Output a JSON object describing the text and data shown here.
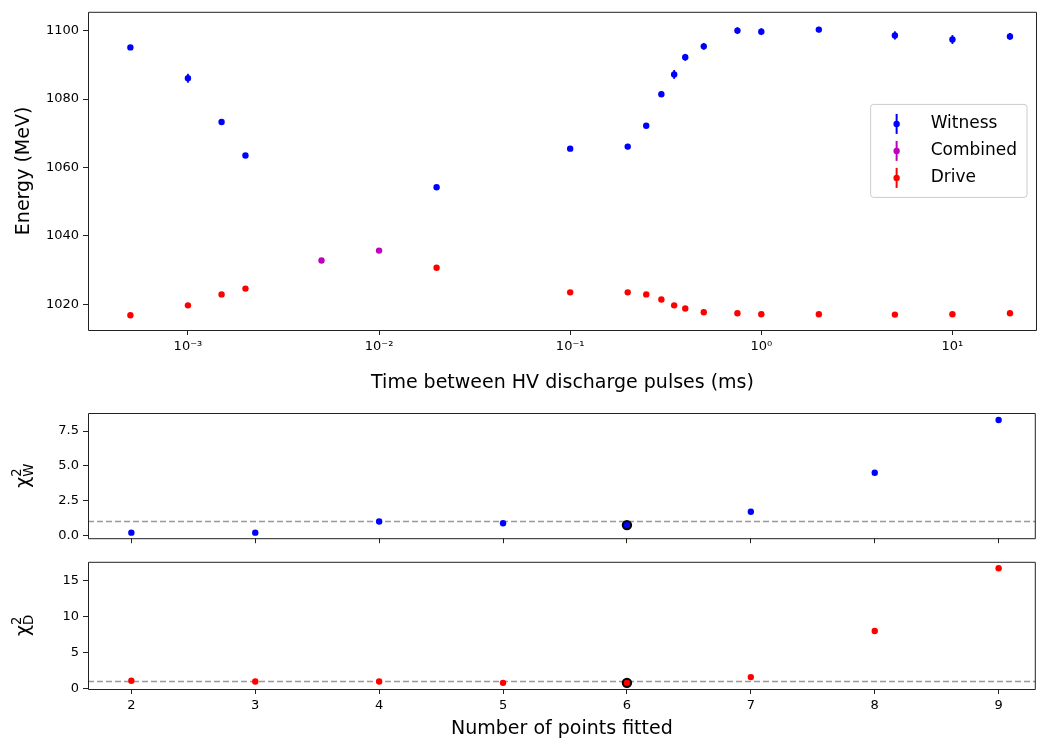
{
  "chart_data": [
    {
      "type": "scatter",
      "xlabel": "Time between HV discharge pulses (ms)",
      "ylabel": "Energy (MeV)",
      "log": "x",
      "xlim": [
        0.0003,
        27.7
      ],
      "ylim": [
        1012.5,
        1105.5
      ],
      "xticks": [
        {
          "value": 0.001,
          "label": "10⁻³"
        },
        {
          "value": 0.01,
          "label": "10⁻²"
        },
        {
          "value": 0.1,
          "label": "10⁻¹"
        },
        {
          "value": 1,
          "label": "10⁰"
        },
        {
          "value": 10,
          "label": "10¹"
        }
      ],
      "yticks": [
        1020,
        1040,
        1060,
        1080,
        1100
      ],
      "legend": "right",
      "marker": "circle",
      "series": [
        {
          "name": "Witness",
          "color": "#0000ff",
          "x": [
            0.0005,
            0.001,
            0.0015,
            0.002,
            0.02,
            0.1,
            0.2,
            0.25,
            0.3,
            0.35,
            0.4,
            0.5,
            0.75,
            1,
            2,
            5,
            10,
            20
          ],
          "values": [
            1095.1,
            1086.1,
            1073.3,
            1063.5,
            1054.2,
            1065.5,
            1066.1,
            1072.2,
            1081.4,
            1087.2,
            1092.2,
            1095.4,
            1100,
            1099.7,
            1100.3,
            1098.6,
            1097.4,
            1098.3
          ],
          "errors": [
            0.5,
            1.3,
            0.5,
            0.5,
            0.5,
            0.5,
            0.8,
            0.6,
            0.8,
            1.3,
            1,
            1,
            1,
            1,
            0.8,
            1.2,
            1.3,
            1
          ]
        },
        {
          "name": "Combined",
          "color": "#bf00bf",
          "x": [
            0.005,
            0.01
          ],
          "values": [
            1032.8,
            1035.7
          ]
        },
        {
          "name": "Drive",
          "color": "#ff0000",
          "x": [
            0.0005,
            0.001,
            0.0015,
            0.002,
            0.02,
            0.1,
            0.2,
            0.25,
            0.3,
            0.35,
            0.4,
            0.5,
            0.75,
            1,
            2,
            5,
            10,
            20
          ],
          "values": [
            1016.8,
            1019.7,
            1022.9,
            1024.6,
            1030.7,
            1023.5,
            1023.5,
            1022.9,
            1021.4,
            1019.7,
            1018.8,
            1017.7,
            1017.4,
            1017.1,
            1017.1,
            1017,
            1017.1,
            1017.4
          ]
        }
      ]
    },
    {
      "type": "scatter",
      "ylabel": "χ$^{2}$$_{W}$",
      "xlim": [
        1.65,
        9.3
      ],
      "ylim": [
        -0.2,
        8.8
      ],
      "xticks": [
        2,
        3,
        4,
        5,
        6,
        7,
        8,
        9
      ],
      "yticks": [
        {
          "value": 0,
          "label": "0.0"
        },
        {
          "value": 2.5,
          "label": "2.5"
        },
        {
          "value": 5,
          "label": "5.0"
        },
        {
          "value": 7.5,
          "label": "7.5"
        }
      ],
      "tick_labels": "y",
      "marker": "circle",
      "ref_lines": [
        {
          "axis": "y",
          "value": 1,
          "color": "#999999",
          "line_style": "dashed"
        }
      ],
      "series": [
        {
          "color": "#0000ff",
          "x": [
            2,
            3,
            4,
            5,
            6,
            7,
            8,
            9
          ],
          "values": [
            0.2,
            0.2,
            1.0,
            0.88,
            0.74,
            1.7,
            4.5,
            8.3
          ]
        },
        {
          "color": "#000000",
          "x": [
            6
          ],
          "values": [
            0.74
          ]
        }
      ]
    },
    {
      "type": "scatter",
      "xlabel": "Number of points fitted",
      "ylabel": "χ$^{2}$$_{D}$",
      "xlim": [
        1.65,
        9.3
      ],
      "ylim": [
        -0.05,
        17.6
      ],
      "xticks": [
        2,
        3,
        4,
        5,
        6,
        7,
        8,
        9
      ],
      "yticks": [
        0,
        5,
        10,
        15
      ],
      "marker": "circle",
      "ref_lines": [
        {
          "axis": "y",
          "value": 1,
          "color": "#999999",
          "line_style": "dashed"
        }
      ],
      "series": [
        {
          "color": "#ff0000",
          "x": [
            2,
            3,
            4,
            5,
            6,
            7,
            8,
            9
          ],
          "values": [
            1.1,
            1.0,
            1.0,
            0.8,
            0.8,
            1.6,
            8.0,
            16.7
          ]
        },
        {
          "color": "#000000",
          "x": [
            6
          ],
          "values": [
            0.8
          ]
        }
      ]
    }
  ]
}
